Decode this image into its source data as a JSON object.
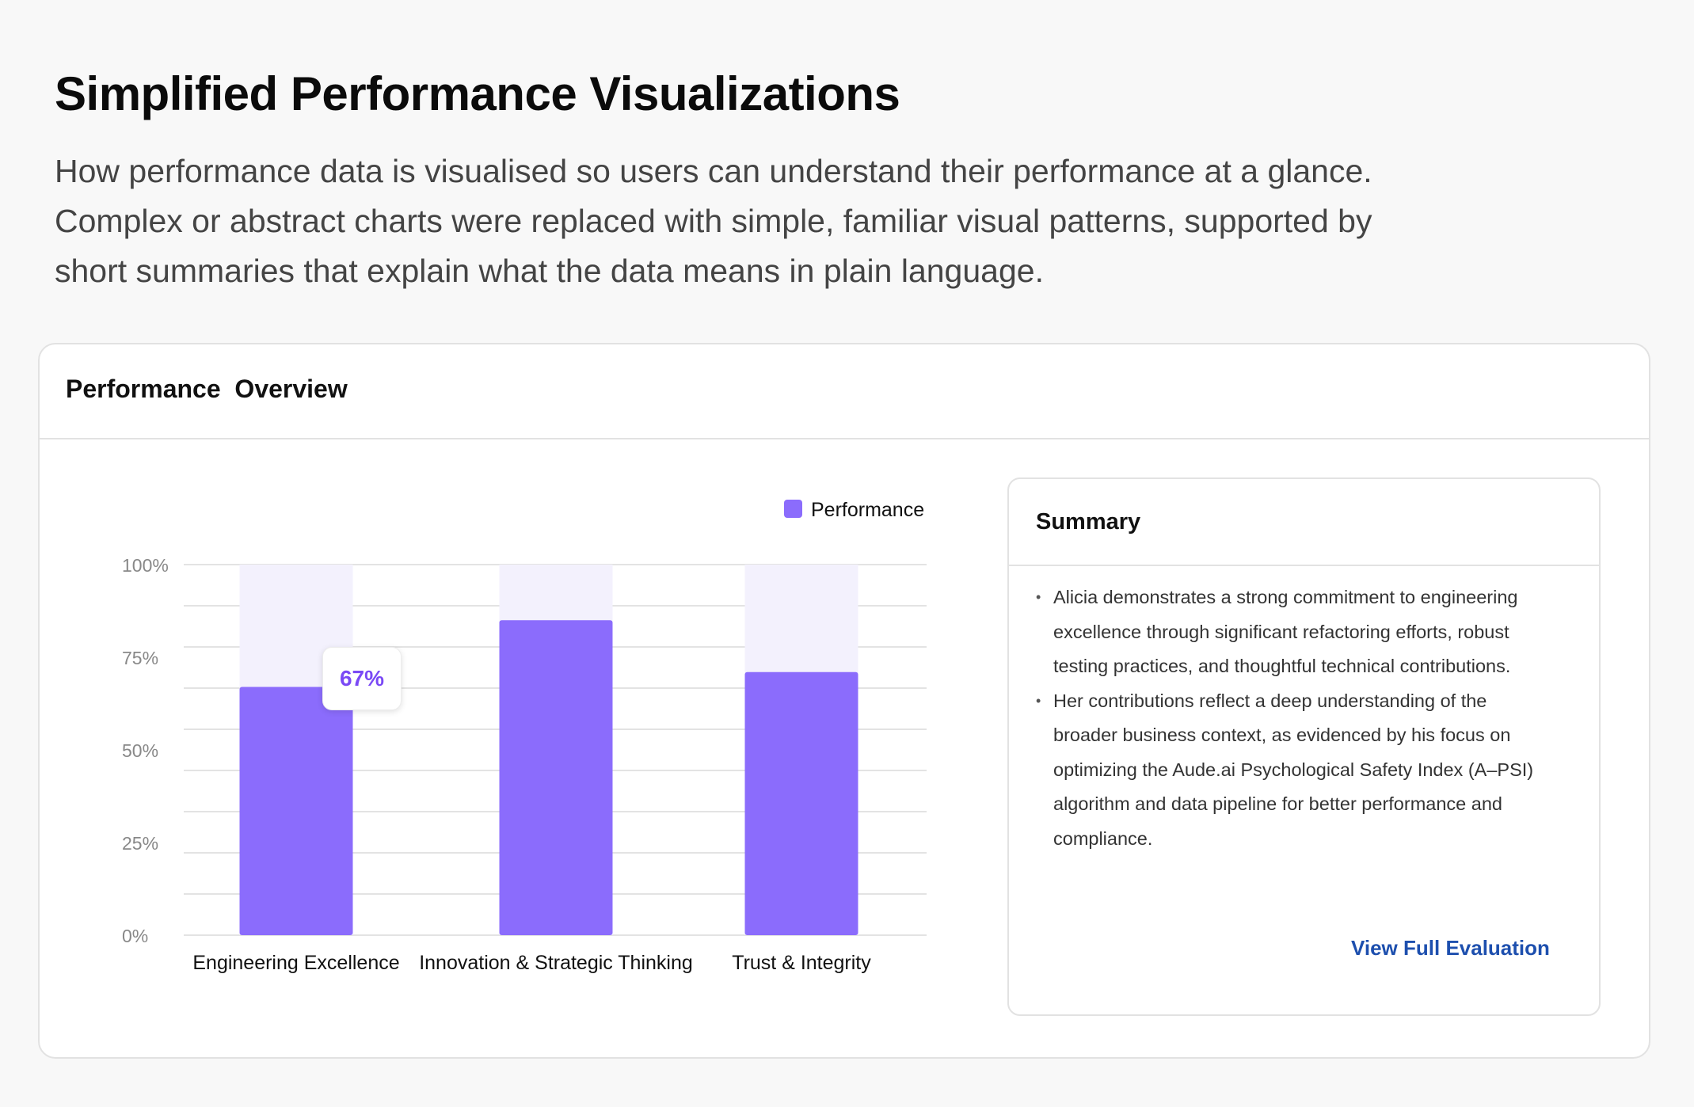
{
  "page": {
    "title": "Simplified Performance Visualizations",
    "description_lines": [
      "How performance data is visualised so users can understand their performance at a glance.",
      "Complex or abstract charts were replaced with simple, familiar visual patterns, supported by",
      "short summaries that explain what the data means in plain language."
    ]
  },
  "card": {
    "title": "Performance  Overview"
  },
  "summary": {
    "title": "Summary",
    "items": [
      {
        "lines": [
          "Alicia demonstrates a strong commitment to engineering",
          "excellence through significant refactoring efforts, robust",
          "testing practices, and thoughtful technical contributions."
        ]
      },
      {
        "lines": [
          "Her contributions reflect a deep understanding of the",
          "broader business context, as evidenced by his focus on",
          "optimizing the Aude.ai Psychological Safety Index (A–PSI)",
          "algorithm and data pipeline for better performance and",
          "compliance."
        ]
      }
    ],
    "bullet": "•",
    "link_label": "View Full Evaluation"
  },
  "colors": {
    "bar_fill": "#8b6cfc",
    "bar_track": "#f3f1fd",
    "tooltip_text": "#7a49f5",
    "link": "#1d4fae",
    "grid": "#e3e3e3"
  },
  "chart_data": {
    "type": "bar",
    "title": "",
    "xlabel": "",
    "ylabel": "",
    "legend": {
      "label": "Performance",
      "placement": "top-right"
    },
    "categories": [
      "Engineering Excellence",
      "Innovation & Strategic Thinking",
      "Trust & Integrity"
    ],
    "series": [
      {
        "name": "Performance",
        "values": [
          67,
          85,
          71
        ]
      }
    ],
    "ylim": [
      0,
      100
    ],
    "y_ticks": [
      {
        "value": 100,
        "label": "100%"
      },
      {
        "value": 75,
        "label": "75%"
      },
      {
        "value": 50,
        "label": "50%"
      },
      {
        "value": 25,
        "label": "25%"
      },
      {
        "value": 0,
        "label": "0%"
      }
    ],
    "minor_grid_step": 11.1111,
    "grid": true,
    "track_max": 100,
    "highlight": {
      "category_index": 0,
      "label": "67%"
    }
  }
}
